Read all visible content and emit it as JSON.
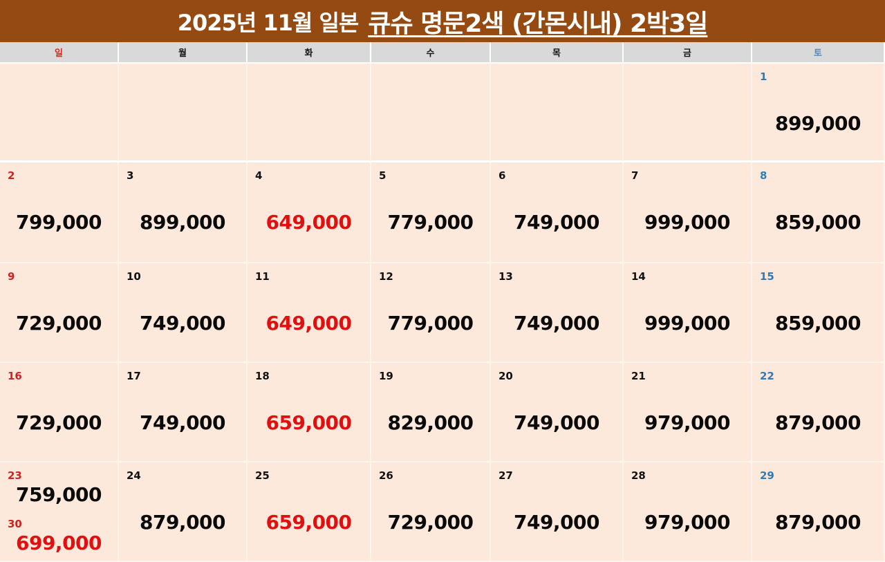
{
  "title": {
    "plain": "2025년 11월 일본",
    "emphasis": "큐슈 명문2색 (간몬시내) 2박3일"
  },
  "colors": {
    "title_bg": "#944a10",
    "header_bg": "#d9d9d9",
    "cell_bg": "#fde9dc",
    "sunday": "#d42020",
    "saturday": "#2f7ab8",
    "price_highlight": "#e01010"
  },
  "weekdays": [
    {
      "label": "일",
      "type": "sun"
    },
    {
      "label": "월",
      "type": ""
    },
    {
      "label": "화",
      "type": ""
    },
    {
      "label": "수",
      "type": ""
    },
    {
      "label": "목",
      "type": ""
    },
    {
      "label": "금",
      "type": ""
    },
    {
      "label": "토",
      "type": "sat"
    }
  ],
  "weeks": [
    [
      null,
      null,
      null,
      null,
      null,
      null,
      {
        "day": "1",
        "price": "899,000"
      }
    ],
    [
      {
        "day": "2",
        "price": "799,000"
      },
      {
        "day": "3",
        "price": "899,000"
      },
      {
        "day": "4",
        "price": "649,000",
        "highlight": true
      },
      {
        "day": "5",
        "price": "779,000"
      },
      {
        "day": "6",
        "price": "749,000"
      },
      {
        "day": "7",
        "price": "999,000"
      },
      {
        "day": "8",
        "price": "859,000"
      }
    ],
    [
      {
        "day": "9",
        "price": "729,000"
      },
      {
        "day": "10",
        "price": "749,000"
      },
      {
        "day": "11",
        "price": "649,000",
        "highlight": true
      },
      {
        "day": "12",
        "price": "779,000"
      },
      {
        "day": "13",
        "price": "749,000"
      },
      {
        "day": "14",
        "price": "999,000"
      },
      {
        "day": "15",
        "price": "859,000"
      }
    ],
    [
      {
        "day": "16",
        "price": "729,000"
      },
      {
        "day": "17",
        "price": "749,000"
      },
      {
        "day": "18",
        "price": "659,000",
        "highlight": true
      },
      {
        "day": "19",
        "price": "829,000"
      },
      {
        "day": "20",
        "price": "749,000"
      },
      {
        "day": "21",
        "price": "979,000"
      },
      {
        "day": "22",
        "price": "879,000"
      }
    ],
    [
      {
        "day": "23",
        "price": "759,000",
        "day2": "30",
        "price2": "699,000",
        "highlight2": true
      },
      {
        "day": "24",
        "price": "879,000"
      },
      {
        "day": "25",
        "price": "659,000",
        "highlight": true
      },
      {
        "day": "26",
        "price": "729,000"
      },
      {
        "day": "27",
        "price": "749,000"
      },
      {
        "day": "28",
        "price": "979,000"
      },
      {
        "day": "29",
        "price": "879,000"
      }
    ]
  ]
}
